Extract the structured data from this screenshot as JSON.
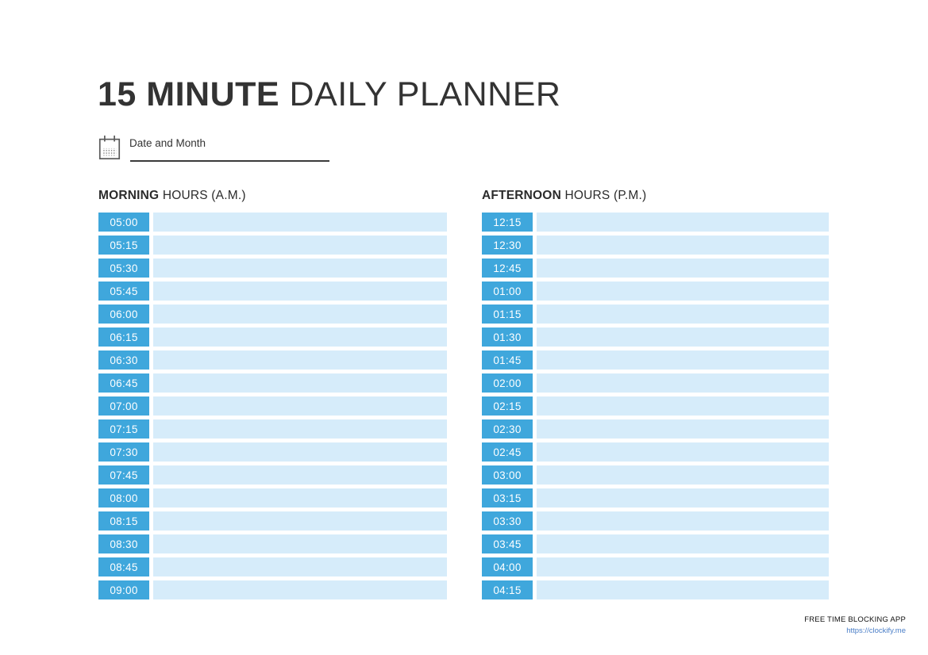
{
  "title": {
    "bold": "15 MINUTE",
    "regular": " DAILY PLANNER"
  },
  "date_field": {
    "label": "Date and Month"
  },
  "columns": [
    {
      "id": "morning",
      "heading_bold": "MORNING",
      "heading_rest": " HOURS (A.M.)",
      "times": [
        "05:00",
        "05:15",
        "05:30",
        "05:45",
        "06:00",
        "06:15",
        "06:30",
        "06:45",
        "07:00",
        "07:15",
        "07:30",
        "07:45",
        "08:00",
        "08:15",
        "08:30",
        "08:45",
        "09:00"
      ]
    },
    {
      "id": "afternoon",
      "heading_bold": "AFTERNOON",
      "heading_rest": " HOURS (P.M.)",
      "times": [
        "12:15",
        "12:30",
        "12:45",
        "01:00",
        "01:15",
        "01:30",
        "01:45",
        "02:00",
        "02:15",
        "02:30",
        "02:45",
        "03:00",
        "03:15",
        "03:30",
        "03:45",
        "04:00",
        "04:15"
      ]
    }
  ],
  "footer": {
    "app_label": "FREE TIME BLOCKING APP",
    "link": "https://clockify.me"
  },
  "icons": {
    "calendar": "calendar-icon"
  },
  "colors": {
    "badge_blue": "#3FA7DC",
    "row_light_blue": "#D6ECFA",
    "link_blue": "#4A7EC7",
    "text_dark": "#333333"
  }
}
